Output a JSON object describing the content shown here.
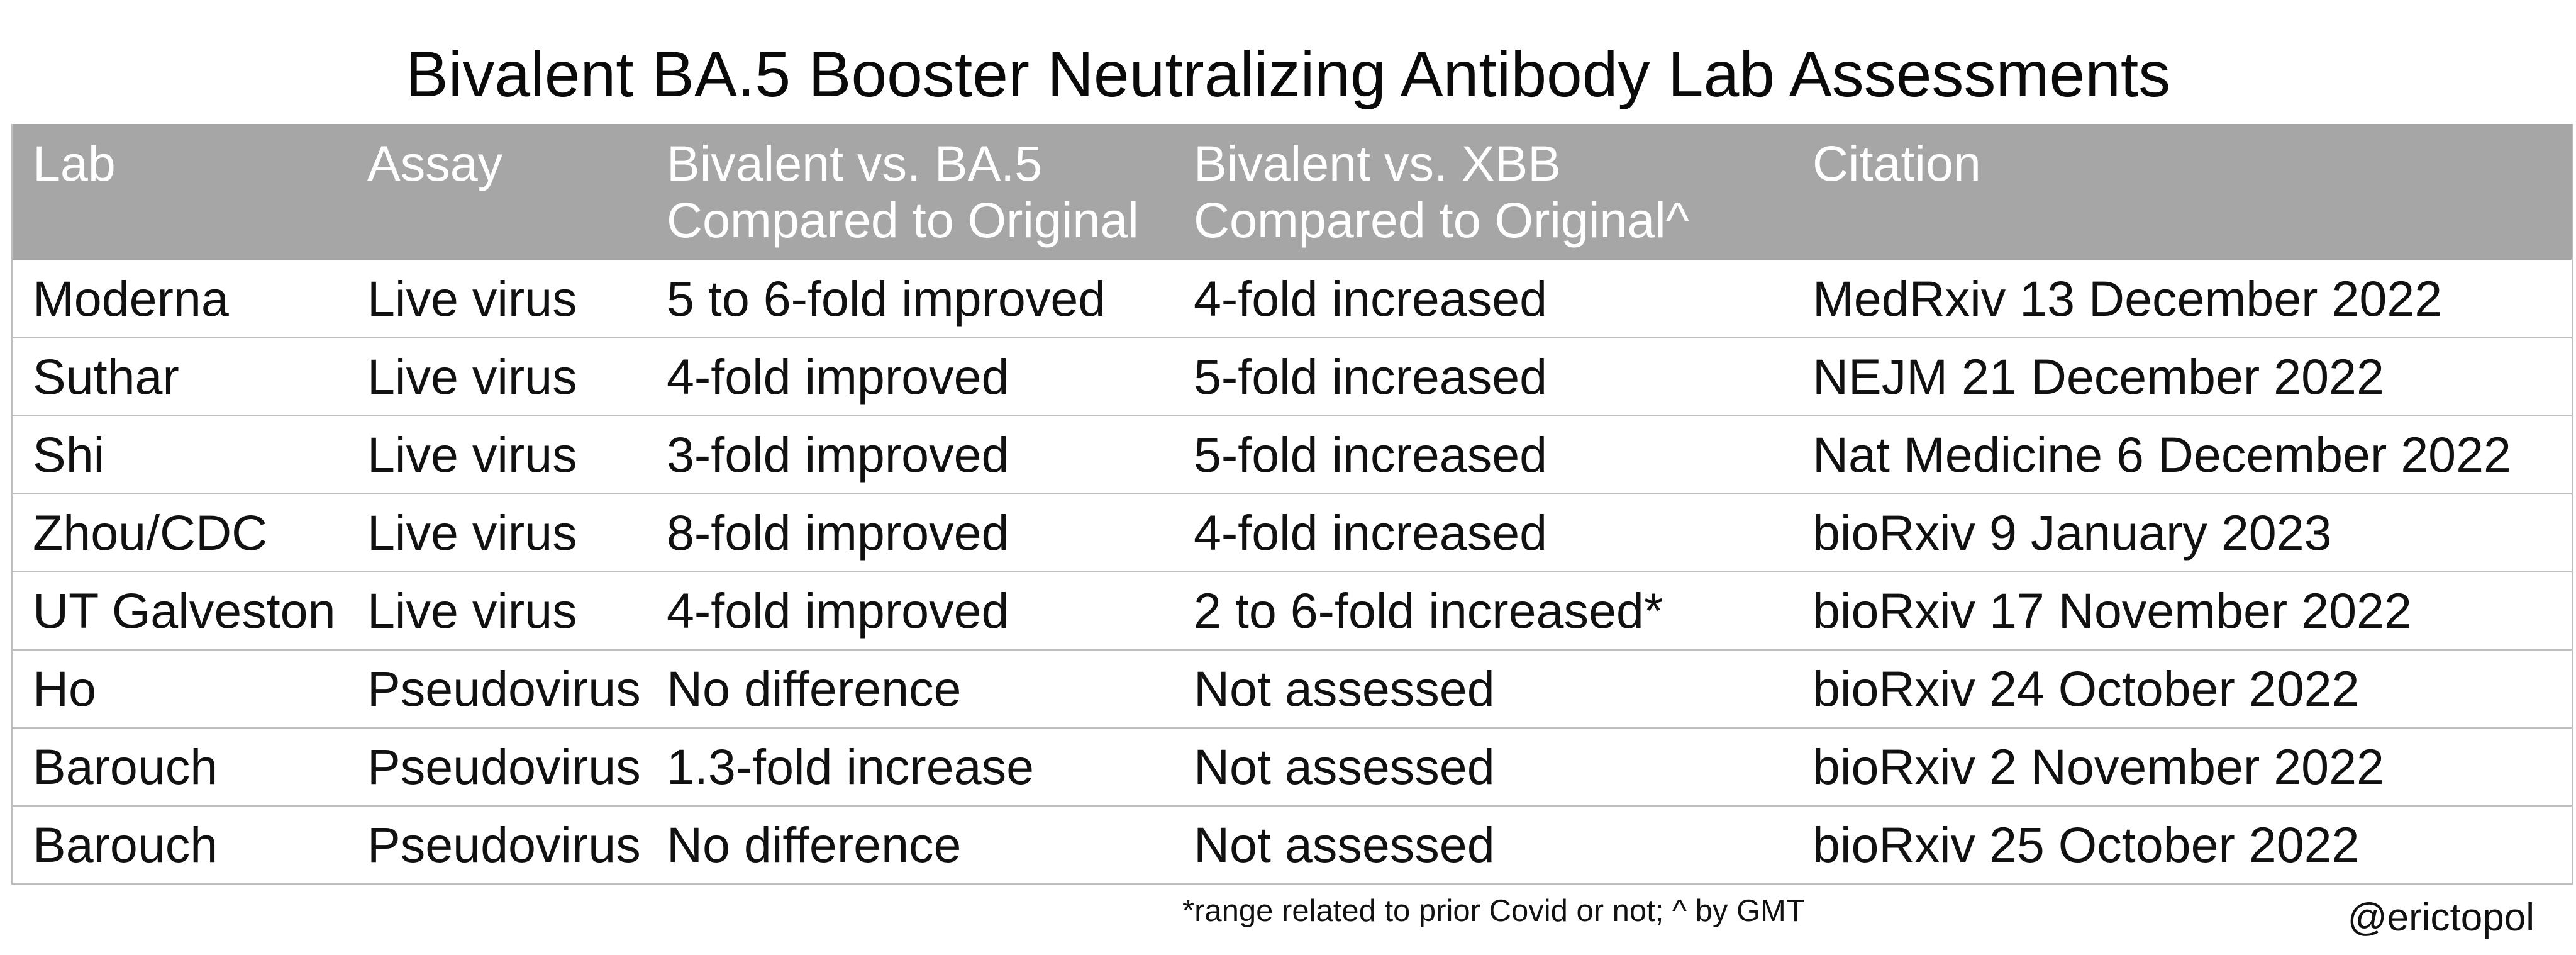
{
  "title": "Bivalent BA.5 Booster Neutralizing Antibody Lab Assessments",
  "table": {
    "headers": [
      {
        "line1": "Lab",
        "line2": ""
      },
      {
        "line1": "Assay",
        "line2": ""
      },
      {
        "line1": "Bivalent vs. BA.5",
        "line2": "Compared to Original"
      },
      {
        "line1": "Bivalent vs. XBB",
        "line2": "Compared to Original^"
      },
      {
        "line1": "Citation",
        "line2": ""
      }
    ],
    "rows": [
      [
        "Moderna",
        "Live virus",
        "5 to 6-fold improved",
        "4-fold increased",
        "MedRxiv 13 December 2022"
      ],
      [
        "Suthar",
        "Live virus",
        "4-fold improved",
        "5-fold increased",
        "NEJM 21 December 2022"
      ],
      [
        "Shi",
        "Live virus",
        "3-fold improved",
        "5-fold increased",
        "Nat Medicine 6 December 2022"
      ],
      [
        "Zhou/CDC",
        "Live virus",
        "8-fold improved",
        "4-fold increased",
        "bioRxiv 9 January 2023"
      ],
      [
        "UT Galveston",
        "Live virus",
        "4-fold improved",
        "2 to 6-fold increased*",
        "bioRxiv 17 November 2022"
      ],
      [
        "Ho",
        "Pseudovirus",
        "No difference",
        "Not assessed",
        "bioRxiv 24 October 2022"
      ],
      [
        "Barouch",
        "Pseudovirus",
        "1.3-fold increase",
        "Not assessed",
        "bioRxiv 2 November 2022"
      ],
      [
        "Barouch",
        "Pseudovirus",
        "No difference",
        "Not assessed",
        "bioRxiv 25 October 2022"
      ]
    ]
  },
  "footnote": "*range related to prior Covid or not; ^ by GMT",
  "credit": "@erictopol",
  "colors": {
    "header_background": "#a6a6a6",
    "header_text": "#ffffff",
    "grid_lines": "#bdbdbd",
    "text": "#111111"
  }
}
